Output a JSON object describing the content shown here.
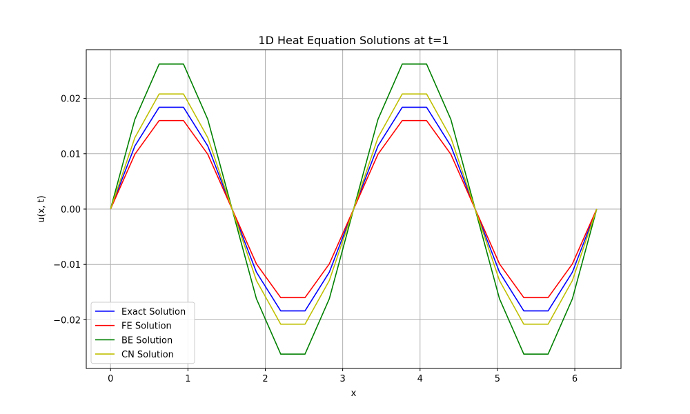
{
  "chart_data": {
    "type": "line",
    "title": "1D Heat Equation Solutions at t=1",
    "xlabel": "x",
    "ylabel": "u(x, t)",
    "xlim": [
      -0.314,
      6.597
    ],
    "ylim": [
      -0.0288,
      0.0288
    ],
    "xticks": [
      0,
      1,
      2,
      3,
      4,
      5,
      6
    ],
    "xtick_labels": [
      "0",
      "1",
      "2",
      "3",
      "4",
      "5",
      "6"
    ],
    "yticks": [
      -0.02,
      -0.01,
      0.0,
      0.01,
      0.02
    ],
    "ytick_labels": [
      "−0.02",
      "−0.01",
      "0.00",
      "0.01",
      "0.02"
    ],
    "grid": true,
    "legend_position": "lower-left",
    "x": [
      0.0,
      0.3142,
      0.6283,
      0.9425,
      1.2566,
      1.5708,
      1.885,
      2.1991,
      2.5133,
      2.8274,
      3.1416,
      3.4558,
      3.7699,
      4.0841,
      4.3982,
      4.7124,
      5.0265,
      5.3407,
      5.6549,
      5.969,
      6.2832
    ],
    "series": [
      {
        "name": "Exact Solution",
        "color": "#0000ff",
        "values": [
          0.0,
          0.0114,
          0.0184,
          0.0184,
          0.0114,
          0.0,
          -0.0114,
          -0.0184,
          -0.0184,
          -0.0114,
          0.0,
          0.0114,
          0.0184,
          0.0184,
          0.0114,
          0.0,
          -0.0114,
          -0.0184,
          -0.0184,
          -0.0114,
          0.0
        ]
      },
      {
        "name": "FE Solution",
        "color": "#ff0000",
        "values": [
          0.0,
          0.0099,
          0.016,
          0.016,
          0.0099,
          0.0,
          -0.0099,
          -0.016,
          -0.016,
          -0.0099,
          0.0,
          0.0099,
          0.016,
          0.016,
          0.0099,
          0.0,
          -0.0099,
          -0.016,
          -0.016,
          -0.0099,
          0.0
        ]
      },
      {
        "name": "BE Solution",
        "color": "#008000",
        "values": [
          0.0,
          0.0162,
          0.0262,
          0.0262,
          0.0162,
          0.0,
          -0.0162,
          -0.0262,
          -0.0262,
          -0.0162,
          0.0,
          0.0162,
          0.0262,
          0.0262,
          0.0162,
          0.0,
          -0.0162,
          -0.0262,
          -0.0262,
          -0.0162,
          0.0
        ]
      },
      {
        "name": "CN Solution",
        "color": "#bfbf00",
        "values": [
          0.0,
          0.0129,
          0.0208,
          0.0208,
          0.0129,
          0.0,
          -0.0129,
          -0.0208,
          -0.0208,
          -0.0129,
          0.0,
          0.0129,
          0.0208,
          0.0208,
          0.0129,
          0.0,
          -0.0129,
          -0.0208,
          -0.0208,
          -0.0129,
          0.0
        ]
      }
    ]
  }
}
